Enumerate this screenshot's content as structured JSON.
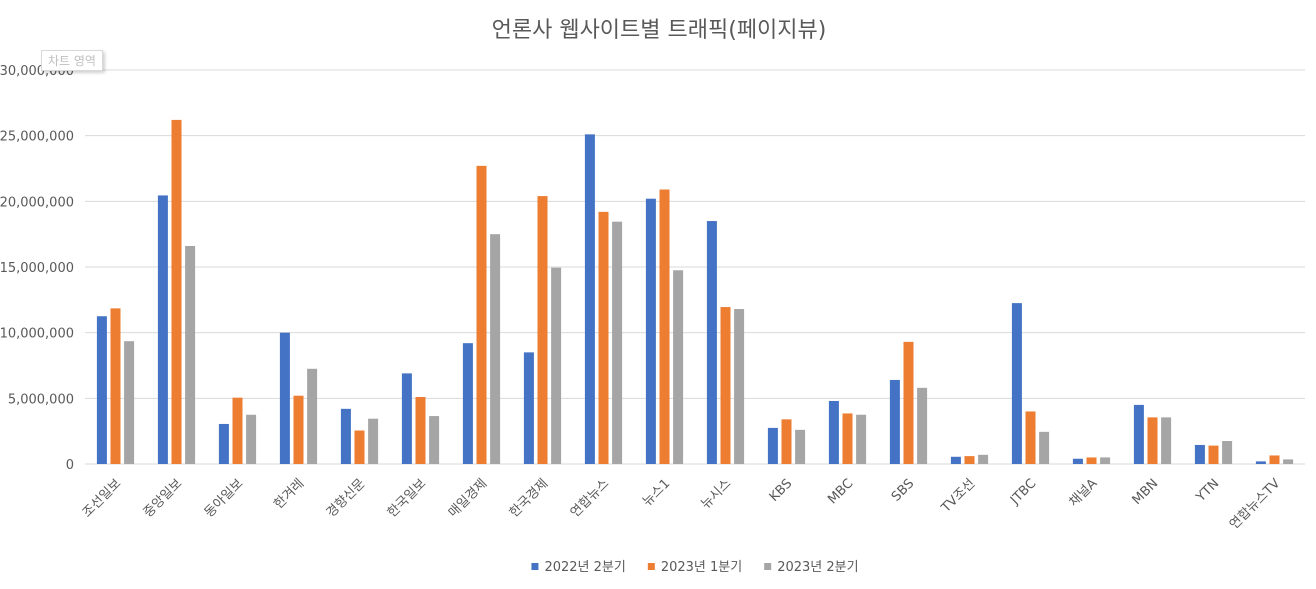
{
  "chart_area_tag": "차트 영역",
  "colors": {
    "series": [
      "#4472C4",
      "#ED7D31",
      "#A5A5A5"
    ],
    "grid": "#D9D9D9",
    "text": "#595959"
  },
  "chart_data": {
    "type": "bar",
    "title": "언론사 웹사이트별 트래픽(페이지뷰)",
    "xlabel": "",
    "ylabel": "",
    "ylim": [
      0,
      30000000
    ],
    "yticks": [
      0,
      5000000,
      10000000,
      15000000,
      20000000,
      25000000,
      30000000
    ],
    "ytick_labels": [
      "0",
      "5,000,000",
      "10,000,000",
      "15,000,000",
      "20,000,000",
      "25,000,000",
      "30,000,000"
    ],
    "grid": true,
    "legend_position": "bottom",
    "categories": [
      "조선일보",
      "중앙일보",
      "동아일보",
      "한겨레",
      "경향신문",
      "한국일보",
      "매일경제",
      "한국경제",
      "연합뉴스",
      "뉴스1",
      "뉴시스",
      "KBS",
      "MBC",
      "SBS",
      "TV조선",
      "JTBC",
      "채널A",
      "MBN",
      "YTN",
      "연합뉴스TV"
    ],
    "series": [
      {
        "name": "2022년 2분기",
        "values": [
          11250000,
          20450000,
          3050000,
          10000000,
          4200000,
          6900000,
          9200000,
          8500000,
          25100000,
          20200000,
          18500000,
          2750000,
          4800000,
          6400000,
          550000,
          12250000,
          400000,
          4500000,
          1450000,
          200000
        ]
      },
      {
        "name": "2023년 1분기",
        "values": [
          11850000,
          26200000,
          5050000,
          5200000,
          2550000,
          5100000,
          22700000,
          20400000,
          19200000,
          20900000,
          11950000,
          3400000,
          3850000,
          9300000,
          600000,
          4000000,
          500000,
          3550000,
          1400000,
          650000
        ]
      },
      {
        "name": "2023년 2분기",
        "values": [
          9350000,
          16600000,
          3750000,
          7250000,
          3450000,
          3650000,
          17500000,
          14950000,
          18450000,
          14750000,
          11800000,
          2600000,
          3750000,
          5800000,
          700000,
          2450000,
          500000,
          3550000,
          1750000,
          350000
        ]
      }
    ]
  }
}
